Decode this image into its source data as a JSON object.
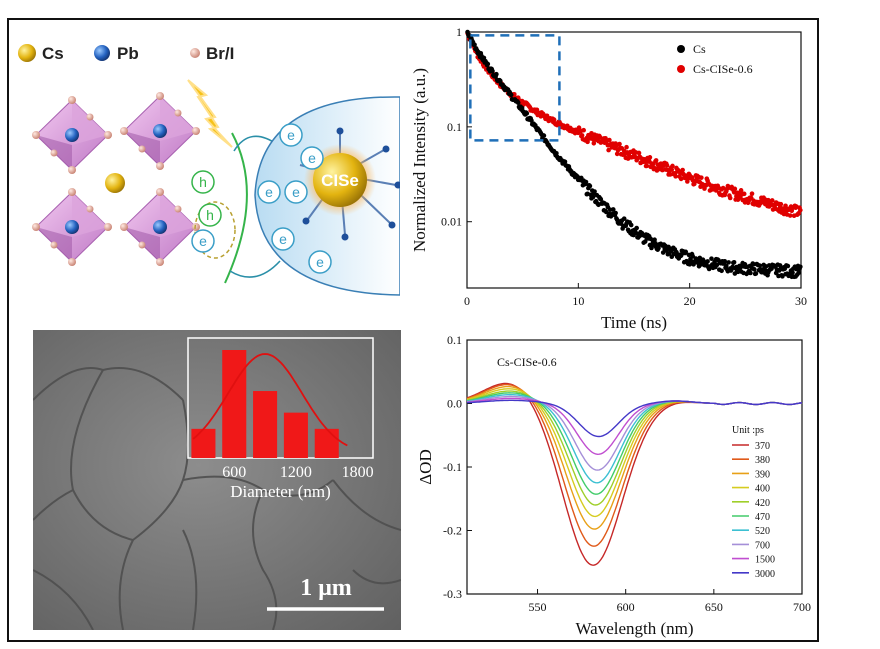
{
  "schematic": {
    "legend": [
      {
        "label": "Cs",
        "color": "#e6b800"
      },
      {
        "label": "Pb",
        "color": "#2a6fc9"
      },
      {
        "label": "Br/I",
        "color": "#e7a99a"
      }
    ],
    "particle_label": "CISe",
    "hole_label": "h",
    "electron_label": "e"
  },
  "sem": {
    "scale_bar_label": "1 μm",
    "histogram": {
      "type": "bar",
      "xlabel": "Diameter (nm)",
      "xticks": [
        "600",
        "1200",
        "1800"
      ],
      "categories": [
        300,
        600,
        900,
        1200,
        1500
      ],
      "values": [
        0.27,
        1.0,
        0.62,
        0.42,
        0.27
      ],
      "fit": "gaussian"
    }
  },
  "chart_data": [
    {
      "type": "line",
      "xlabel": "Time (ns)",
      "ylabel": "Normalized Intensity (a.u.)",
      "xlim": [
        0,
        30
      ],
      "ylim": [
        0.002,
        1
      ],
      "yscale": "log",
      "xticks": [
        "0",
        "10",
        "20",
        "30"
      ],
      "yticks": [
        "1",
        "0.1",
        "0.01"
      ],
      "legend_position": "top-right",
      "series": [
        {
          "name": "Cs",
          "color": "#000000",
          "x": [
            0,
            1,
            2,
            3,
            4,
            5,
            6,
            7,
            8,
            10,
            12,
            14,
            16,
            18,
            20,
            22,
            24,
            26,
            28,
            30
          ],
          "y": [
            1.0,
            0.62,
            0.42,
            0.3,
            0.21,
            0.15,
            0.105,
            0.074,
            0.052,
            0.028,
            0.016,
            0.0098,
            0.0066,
            0.005,
            0.0041,
            0.0036,
            0.0033,
            0.0032,
            0.0031,
            0.003
          ]
        },
        {
          "name": "Cs-CISe-0.6",
          "color": "#e00000",
          "x": [
            0,
            1,
            2,
            3,
            4,
            5,
            6,
            7,
            8,
            10,
            12,
            14,
            16,
            18,
            20,
            22,
            24,
            26,
            28,
            30
          ],
          "y": [
            1.0,
            0.56,
            0.38,
            0.28,
            0.22,
            0.18,
            0.15,
            0.128,
            0.112,
            0.088,
            0.07,
            0.056,
            0.045,
            0.036,
            0.029,
            0.024,
            0.02,
            0.017,
            0.0145,
            0.0125
          ]
        }
      ]
    },
    {
      "type": "line",
      "annotation": "Cs-CISe-0.6",
      "xlabel": "Wavelength (nm)",
      "ylabel": "ΔOD",
      "xlim": [
        510,
        700
      ],
      "ylim": [
        -0.3,
        0.1
      ],
      "xticks": [
        "550",
        "600",
        "650",
        "700"
      ],
      "yticks": [
        "0.1",
        "0.0",
        "-0.1",
        "-0.2",
        "-0.3"
      ],
      "legend_title": "Unit :ps",
      "legend_position": "right",
      "series": [
        {
          "name": "370",
          "color": "#c62828",
          "amp": -0.255,
          "edge": 0.035
        },
        {
          "name": "380",
          "color": "#e05a1a",
          "amp": -0.225,
          "edge": 0.032
        },
        {
          "name": "390",
          "color": "#e8a017",
          "amp": -0.198,
          "edge": 0.028
        },
        {
          "name": "400",
          "color": "#d6cc20",
          "amp": -0.178,
          "edge": 0.024
        },
        {
          "name": "420",
          "color": "#9fcf2a",
          "amp": -0.16,
          "edge": 0.02
        },
        {
          "name": "470",
          "color": "#42cc6a",
          "amp": -0.143,
          "edge": 0.017
        },
        {
          "name": "520",
          "color": "#3cc0d2",
          "amp": -0.125,
          "edge": 0.014
        },
        {
          "name": "700",
          "color": "#a58fd8",
          "amp": -0.105,
          "edge": 0.011
        },
        {
          "name": "1500",
          "color": "#c04ed0",
          "amp": -0.08,
          "edge": 0.008
        },
        {
          "name": "3000",
          "color": "#4438c8",
          "amp": -0.052,
          "edge": 0.005
        }
      ]
    }
  ]
}
